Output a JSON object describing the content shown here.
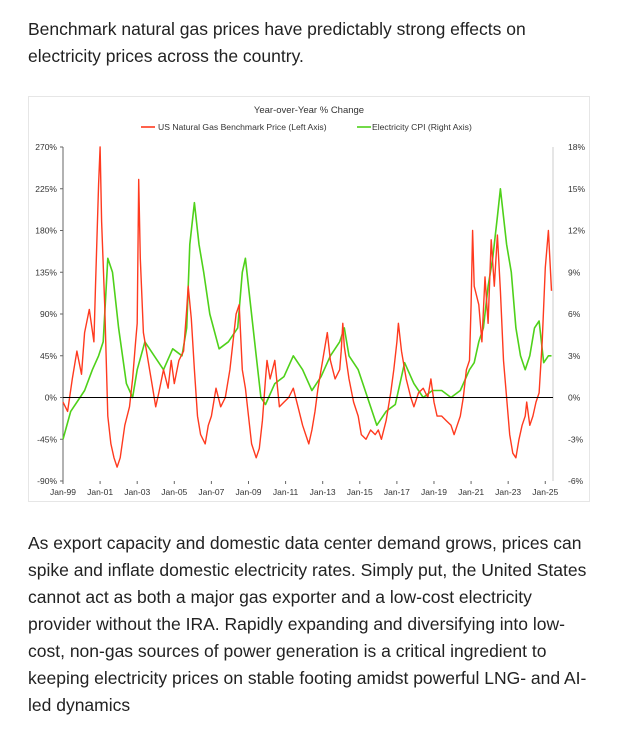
{
  "intro_text": "Benchmark natural gas prices have predictably strong effects on electricity prices across the country.",
  "outro_text": "As export capacity and domestic data center demand grows, prices can spike and inflate domestic electricity rates. Simply put, the United States cannot act as both a major gas exporter and a low-cost electricity provider without the IRA. Rapidly expanding and diversifying into low-cost, non-gas sources of power generation is a critical ingredient to keeping electricity prices on stable footing amidst powerful LNG- and AI-led dynamics",
  "colors": {
    "gas": "#ff3a1f",
    "electricity": "#4fd11a",
    "zero_line": "#000000",
    "axis": "#666666"
  },
  "chart_data": {
    "type": "line",
    "title": "Year-over-Year % Change",
    "xlabel": "",
    "ylabel_left": "",
    "ylabel_right": "",
    "x_ticks": [
      "Jan-99",
      "Jan-01",
      "Jan-03",
      "Jan-05",
      "Jan-07",
      "Jan-09",
      "Jan-11",
      "Jan-13",
      "Jan-15",
      "Jan-17",
      "Jan-19",
      "Jan-21",
      "Jan-23",
      "Jan-25"
    ],
    "y_left_ticks": [
      "270%",
      "225%",
      "180%",
      "135%",
      "90%",
      "45%",
      "0%",
      "-45%",
      "-90%"
    ],
    "y_right_ticks": [
      "18%",
      "15%",
      "12%",
      "9%",
      "6%",
      "3%",
      "0%",
      "-3%",
      "-6%"
    ],
    "y_left_range": [
      -90,
      270
    ],
    "y_right_range": [
      -6,
      18
    ],
    "x_range": [
      "1999-01",
      "2025-06"
    ],
    "legend_position": "top-center",
    "series": [
      {
        "name": "US Natural Gas Benchmark Price (Left Axis)",
        "axis": "left",
        "points": [
          [
            "1999-01",
            -5
          ],
          [
            "1999-04",
            -15
          ],
          [
            "1999-07",
            20
          ],
          [
            "1999-10",
            50
          ],
          [
            "2000-01",
            25
          ],
          [
            "2000-03",
            70
          ],
          [
            "2000-06",
            95
          ],
          [
            "2000-09",
            60
          ],
          [
            "2000-10",
            120
          ],
          [
            "2000-12",
            230
          ],
          [
            "2001-01",
            270
          ],
          [
            "2001-02",
            190
          ],
          [
            "2001-04",
            100
          ],
          [
            "2001-06",
            -20
          ],
          [
            "2001-08",
            -50
          ],
          [
            "2001-10",
            -65
          ],
          [
            "2001-12",
            -75
          ],
          [
            "2002-02",
            -65
          ],
          [
            "2002-05",
            -30
          ],
          [
            "2002-08",
            -10
          ],
          [
            "2002-10",
            20
          ],
          [
            "2002-12",
            60
          ],
          [
            "2003-01",
            80
          ],
          [
            "2003-02",
            235
          ],
          [
            "2003-03",
            150
          ],
          [
            "2003-05",
            70
          ],
          [
            "2003-07",
            50
          ],
          [
            "2003-09",
            30
          ],
          [
            "2003-11",
            10
          ],
          [
            "2004-01",
            -10
          ],
          [
            "2004-03",
            5
          ],
          [
            "2004-06",
            30
          ],
          [
            "2004-09",
            10
          ],
          [
            "2004-11",
            40
          ],
          [
            "2005-01",
            15
          ],
          [
            "2005-04",
            40
          ],
          [
            "2005-07",
            50
          ],
          [
            "2005-09",
            95
          ],
          [
            "2005-10",
            120
          ],
          [
            "2005-12",
            85
          ],
          [
            "2006-02",
            30
          ],
          [
            "2006-04",
            -20
          ],
          [
            "2006-06",
            -40
          ],
          [
            "2006-09",
            -50
          ],
          [
            "2006-11",
            -30
          ],
          [
            "2007-01",
            -20
          ],
          [
            "2007-04",
            10
          ],
          [
            "2007-07",
            -10
          ],
          [
            "2007-10",
            0
          ],
          [
            "2008-01",
            30
          ],
          [
            "2008-03",
            60
          ],
          [
            "2008-05",
            90
          ],
          [
            "2008-07",
            100
          ],
          [
            "2008-09",
            30
          ],
          [
            "2008-11",
            10
          ],
          [
            "2009-01",
            -20
          ],
          [
            "2009-03",
            -50
          ],
          [
            "2009-06",
            -65
          ],
          [
            "2009-08",
            -55
          ],
          [
            "2009-10",
            -25
          ],
          [
            "2009-12",
            20
          ],
          [
            "2010-01",
            40
          ],
          [
            "2010-03",
            20
          ],
          [
            "2010-06",
            40
          ],
          [
            "2010-09",
            -10
          ],
          [
            "2010-12",
            -5
          ],
          [
            "2011-03",
            0
          ],
          [
            "2011-06",
            10
          ],
          [
            "2011-09",
            -10
          ],
          [
            "2011-12",
            -30
          ],
          [
            "2012-02",
            -40
          ],
          [
            "2012-04",
            -50
          ],
          [
            "2012-06",
            -35
          ],
          [
            "2012-08",
            -15
          ],
          [
            "2012-10",
            10
          ],
          [
            "2012-12",
            30
          ],
          [
            "2013-02",
            50
          ],
          [
            "2013-04",
            70
          ],
          [
            "2013-06",
            40
          ],
          [
            "2013-09",
            20
          ],
          [
            "2013-12",
            30
          ],
          [
            "2014-01",
            50
          ],
          [
            "2014-02",
            80
          ],
          [
            "2014-03",
            55
          ],
          [
            "2014-06",
            20
          ],
          [
            "2014-09",
            -5
          ],
          [
            "2014-12",
            -20
          ],
          [
            "2015-02",
            -40
          ],
          [
            "2015-05",
            -45
          ],
          [
            "2015-08",
            -35
          ],
          [
            "2015-11",
            -40
          ],
          [
            "2016-01",
            -35
          ],
          [
            "2016-03",
            -45
          ],
          [
            "2016-06",
            -25
          ],
          [
            "2016-09",
            5
          ],
          [
            "2016-11",
            30
          ],
          [
            "2017-01",
            60
          ],
          [
            "2017-02",
            80
          ],
          [
            "2017-04",
            50
          ],
          [
            "2017-07",
            20
          ],
          [
            "2017-10",
            0
          ],
          [
            "2017-12",
            -10
          ],
          [
            "2018-03",
            5
          ],
          [
            "2018-06",
            10
          ],
          [
            "2018-09",
            0
          ],
          [
            "2018-11",
            20
          ],
          [
            "2019-01",
            -5
          ],
          [
            "2019-03",
            -20
          ],
          [
            "2019-06",
            -20
          ],
          [
            "2019-09",
            -25
          ],
          [
            "2019-12",
            -30
          ],
          [
            "2020-02",
            -40
          ],
          [
            "2020-04",
            -30
          ],
          [
            "2020-06",
            -20
          ],
          [
            "2020-08",
            0
          ],
          [
            "2020-10",
            30
          ],
          [
            "2020-12",
            40
          ],
          [
            "2021-01",
            100
          ],
          [
            "2021-02",
            180
          ],
          [
            "2021-03",
            120
          ],
          [
            "2021-06",
            100
          ],
          [
            "2021-08",
            60
          ],
          [
            "2021-10",
            130
          ],
          [
            "2021-12",
            80
          ],
          [
            "2022-02",
            170
          ],
          [
            "2022-04",
            120
          ],
          [
            "2022-06",
            175
          ],
          [
            "2022-08",
            115
          ],
          [
            "2022-10",
            40
          ],
          [
            "2022-12",
            0
          ],
          [
            "2023-02",
            -40
          ],
          [
            "2023-04",
            -60
          ],
          [
            "2023-06",
            -65
          ],
          [
            "2023-08",
            -45
          ],
          [
            "2023-10",
            -30
          ],
          [
            "2023-12",
            -20
          ],
          [
            "2024-01",
            -5
          ],
          [
            "2024-03",
            -30
          ],
          [
            "2024-05",
            -20
          ],
          [
            "2024-07",
            -5
          ],
          [
            "2024-09",
            5
          ],
          [
            "2024-11",
            60
          ],
          [
            "2025-01",
            140
          ],
          [
            "2025-03",
            180
          ],
          [
            "2025-05",
            115
          ]
        ]
      },
      {
        "name": "Electricity CPI (Right Axis)",
        "axis": "right",
        "points": [
          [
            "1999-01",
            -3
          ],
          [
            "1999-06",
            -1
          ],
          [
            "1999-12",
            0
          ],
          [
            "2000-03",
            0.5
          ],
          [
            "2000-08",
            2
          ],
          [
            "2000-12",
            3
          ],
          [
            "2001-03",
            4
          ],
          [
            "2001-06",
            10
          ],
          [
            "2001-09",
            9
          ],
          [
            "2002-01",
            5
          ],
          [
            "2002-06",
            1
          ],
          [
            "2002-10",
            0
          ],
          [
            "2003-01",
            2
          ],
          [
            "2003-06",
            4
          ],
          [
            "2003-12",
            3
          ],
          [
            "2004-06",
            2
          ],
          [
            "2004-12",
            3.5
          ],
          [
            "2005-06",
            3
          ],
          [
            "2005-09",
            5
          ],
          [
            "2005-11",
            11
          ],
          [
            "2006-02",
            14
          ],
          [
            "2006-05",
            11
          ],
          [
            "2006-08",
            9
          ],
          [
            "2006-12",
            6
          ],
          [
            "2007-06",
            3.5
          ],
          [
            "2007-12",
            4
          ],
          [
            "2008-06",
            5
          ],
          [
            "2008-09",
            9
          ],
          [
            "2008-11",
            10
          ],
          [
            "2009-02",
            7
          ],
          [
            "2009-06",
            3
          ],
          [
            "2009-09",
            0
          ],
          [
            "2009-12",
            -0.5
          ],
          [
            "2010-06",
            1
          ],
          [
            "2010-12",
            1.5
          ],
          [
            "2011-06",
            3
          ],
          [
            "2011-12",
            2
          ],
          [
            "2012-06",
            0.5
          ],
          [
            "2012-12",
            1.5
          ],
          [
            "2013-06",
            3
          ],
          [
            "2013-12",
            4
          ],
          [
            "2014-03",
            5
          ],
          [
            "2014-06",
            3
          ],
          [
            "2014-12",
            2
          ],
          [
            "2015-06",
            0
          ],
          [
            "2015-12",
            -2
          ],
          [
            "2016-06",
            -1
          ],
          [
            "2016-12",
            -0.5
          ],
          [
            "2017-06",
            2.5
          ],
          [
            "2017-12",
            1
          ],
          [
            "2018-06",
            0
          ],
          [
            "2018-12",
            0.5
          ],
          [
            "2019-06",
            0.5
          ],
          [
            "2019-12",
            0
          ],
          [
            "2020-06",
            0.5
          ],
          [
            "2020-12",
            2
          ],
          [
            "2021-03",
            2.5
          ],
          [
            "2021-06",
            4
          ],
          [
            "2021-09",
            5
          ],
          [
            "2021-12",
            8
          ],
          [
            "2022-03",
            10
          ],
          [
            "2022-06",
            13
          ],
          [
            "2022-08",
            15
          ],
          [
            "2022-10",
            13
          ],
          [
            "2022-12",
            11
          ],
          [
            "2023-03",
            9
          ],
          [
            "2023-06",
            5
          ],
          [
            "2023-09",
            3
          ],
          [
            "2023-12",
            2
          ],
          [
            "2024-03",
            3
          ],
          [
            "2024-06",
            5
          ],
          [
            "2024-09",
            5.5
          ],
          [
            "2024-12",
            2.5
          ],
          [
            "2025-03",
            3
          ],
          [
            "2025-05",
            3
          ]
        ]
      }
    ]
  }
}
